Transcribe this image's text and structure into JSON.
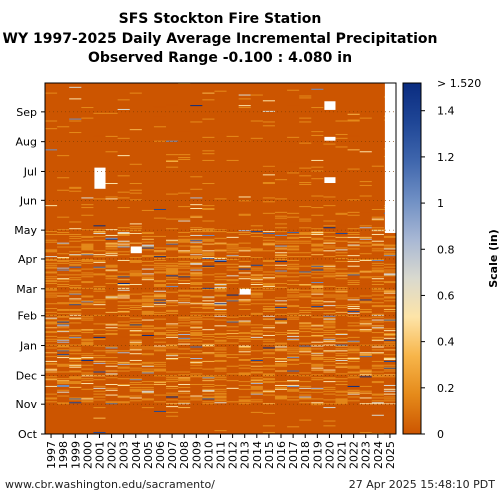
{
  "header": {
    "title": "SFS Stockton Fire Station",
    "subtitle": "WY 1997-2025 Daily Average Incremental Precipitation",
    "range_label": "Observed Range -0.100 : 4.080 in"
  },
  "footer": {
    "url": "www.cbr.washington.edu/sacramento/",
    "timestamp": "27 Apr 2025 15:48:10 PDT"
  },
  "chart_data": {
    "type": "heatmap",
    "x_categories": [
      "1997",
      "1998",
      "1999",
      "2000",
      "2001",
      "2002",
      "2003",
      "2004",
      "2005",
      "2006",
      "2007",
      "2008",
      "2009",
      "2010",
      "2011",
      "2012",
      "2013",
      "2014",
      "2015",
      "2016",
      "2017",
      "2018",
      "2019",
      "2020",
      "2021",
      "2022",
      "2023",
      "2024",
      "2025"
    ],
    "y_ticks": [
      "Oct",
      "Nov",
      "Dec",
      "Jan",
      "Feb",
      "Mar",
      "Apr",
      "May",
      "Jun",
      "Jul",
      "Aug",
      "Sep"
    ],
    "colorbar": {
      "label": "Scale (in)",
      "min": 0,
      "max": 1.52,
      "ticks": [
        "0",
        "0.2",
        "0.4",
        "0.6",
        "0.8",
        "1",
        "1.2",
        "1.4"
      ],
      "top_label": "> 1.520",
      "colors": [
        "#cc5500",
        "#e58a1a",
        "#f7b54a",
        "#fde4a8",
        "#d9d9cf",
        "#a7b7d4",
        "#6f8fc4",
        "#3f66ad",
        "#1f4696",
        "#0a2c80"
      ]
    },
    "base_color": "#cc5500",
    "missing_color": "#ffffff",
    "missing_blocks": [
      {
        "year": "2001",
        "from_day": 255,
        "to_day": 277
      },
      {
        "year": "2004",
        "from_day": 188,
        "to_day": 195
      },
      {
        "year": "2013",
        "from_day": 145,
        "to_day": 151
      },
      {
        "year": "2020",
        "from_day": 261,
        "to_day": 267
      },
      {
        "year": "2020",
        "from_day": 305,
        "to_day": 309
      },
      {
        "year": "2020",
        "from_day": 337,
        "to_day": 346
      },
      {
        "year": "2025",
        "from_day": 209,
        "to_day": 365
      }
    ]
  }
}
